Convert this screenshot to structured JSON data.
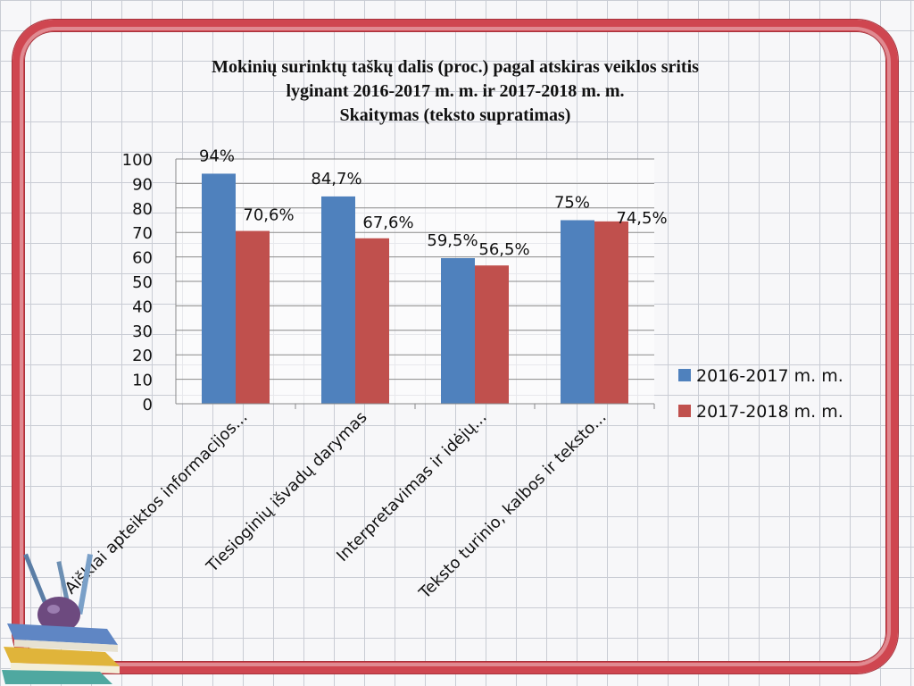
{
  "title_lines": [
    "Mokinių surinktų taškų dalis (proc.) pagal atskiras veiklos sritis",
    "lyginant 2016-2017 m. m. ir 2017-2018 m. m.",
    "Skaitymas (teksto supratimas)"
  ],
  "colors": {
    "frame": "#cf4650",
    "series1": "#4f81bd",
    "series2": "#c0504d"
  },
  "chart_data": {
    "type": "bar",
    "title": "Mokinių surinktų taškų dalis (proc.) pagal atskiras veiklos sritis lyginant 2016-2017 m. m. ir 2017-2018 m. m. Skaitymas (teksto supratimas)",
    "categories": [
      "Aiškiai apteiktos informacijos...",
      "Tiesioginių išvadų darymas",
      "Interpretavimas ir idėjų...",
      "Teksto turinio, kalbos ir teksto..."
    ],
    "series": [
      {
        "name": "2016-2017 m. m.",
        "values": [
          94,
          84.7,
          59.5,
          75
        ],
        "labels": [
          "94%",
          "84,7%",
          "59,5%",
          "75%"
        ]
      },
      {
        "name": "2017-2018 m. m.",
        "values": [
          70.6,
          67.6,
          56.5,
          74.5
        ],
        "labels": [
          "70,6%",
          "67,6%",
          "56,5%",
          "74,5%"
        ]
      }
    ],
    "yticks": [
      "0",
      "10",
      "20",
      "30",
      "40",
      "50",
      "60",
      "70",
      "80",
      "90",
      "100"
    ],
    "ylim": [
      0,
      100
    ],
    "xlabel": "",
    "ylabel": "",
    "grid": true,
    "legend": "right"
  }
}
